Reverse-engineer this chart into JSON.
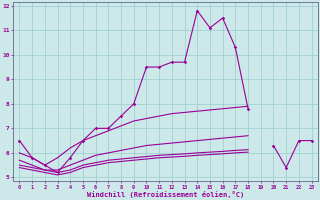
{
  "x_values": [
    0,
    1,
    2,
    3,
    4,
    5,
    6,
    7,
    8,
    9,
    10,
    11,
    12,
    13,
    14,
    15,
    16,
    17,
    18,
    19,
    20,
    21,
    22,
    23
  ],
  "line1": [
    6.5,
    5.8,
    5.5,
    5.2,
    5.8,
    6.5,
    7.0,
    7.0,
    7.5,
    8.0,
    9.5,
    9.5,
    9.7,
    9.7,
    11.8,
    11.1,
    11.5,
    10.3,
    7.8,
    null,
    6.3,
    5.4,
    6.5,
    6.5
  ],
  "line2": [
    6.0,
    5.8,
    5.5,
    5.8,
    6.2,
    6.5,
    6.7,
    6.9,
    7.1,
    7.3,
    7.4,
    7.5,
    7.6,
    7.65,
    7.7,
    7.75,
    7.8,
    7.85,
    7.9,
    null,
    null,
    null,
    null,
    null
  ],
  "line3": [
    5.7,
    5.5,
    5.3,
    5.3,
    5.5,
    5.7,
    5.9,
    6.0,
    6.1,
    6.2,
    6.3,
    6.35,
    6.4,
    6.45,
    6.5,
    6.55,
    6.6,
    6.65,
    6.7,
    null,
    null,
    null,
    null,
    null
  ],
  "line4": [
    5.5,
    5.4,
    5.3,
    5.2,
    5.3,
    5.5,
    5.6,
    5.7,
    5.75,
    5.8,
    5.85,
    5.9,
    5.93,
    5.96,
    6.0,
    6.03,
    6.06,
    6.1,
    6.13,
    null,
    null,
    null,
    null,
    null
  ],
  "line5": [
    5.4,
    5.3,
    5.2,
    5.1,
    5.2,
    5.4,
    5.5,
    5.6,
    5.65,
    5.7,
    5.75,
    5.8,
    5.83,
    5.86,
    5.9,
    5.93,
    5.96,
    6.0,
    6.03,
    null,
    null,
    null,
    null,
    null
  ],
  "line_color": "#990099",
  "background_color": "#cce8e8",
  "grid_color": "#99cccc",
  "xlabel": "Windchill (Refroidissement éolien,°C)",
  "ylim": [
    5,
    12
  ],
  "xlim": [
    -0.5,
    23.5
  ],
  "yticks": [
    5,
    6,
    7,
    8,
    9,
    10,
    11,
    12
  ],
  "xticks": [
    0,
    1,
    2,
    3,
    4,
    5,
    6,
    7,
    8,
    9,
    10,
    11,
    12,
    13,
    14,
    15,
    16,
    17,
    18,
    19,
    20,
    21,
    22,
    23
  ]
}
